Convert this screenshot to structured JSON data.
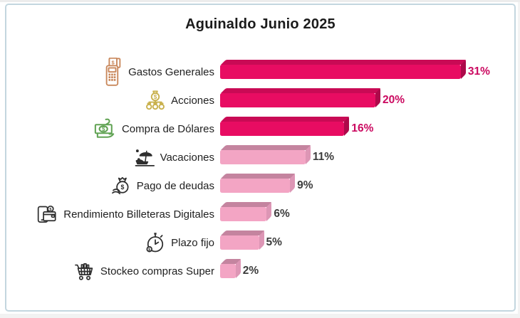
{
  "chart_data": {
    "type": "bar",
    "orientation": "horizontal",
    "title": "Aguinaldo Junio 2025",
    "categories": [
      "Gastos Generales",
      "Acciones",
      "Compra de Dólares",
      "Vacaciones",
      "Pago de deudas",
      "Rendimiento Billeteras Digitales",
      "Plazo fijo",
      "Stockeo compras Super"
    ],
    "values": [
      31,
      20,
      16,
      11,
      9,
      6,
      5,
      2
    ],
    "unit": "%",
    "xlim": [
      0,
      33
    ],
    "grid": false,
    "legend": "none",
    "highlight_note": "top 3 bars dark magenta, remaining 5 bars light pink"
  },
  "rows": [
    {
      "label": "Gastos Generales",
      "value": 31,
      "value_label": "31%",
      "icon": "pos-terminal-icon",
      "tone": "dark"
    },
    {
      "label": "Acciones",
      "value": 20,
      "value_label": "20%",
      "icon": "money-distribution-icon",
      "tone": "dark"
    },
    {
      "label": "Compra de Dólares",
      "value": 16,
      "value_label": "16%",
      "icon": "cash-in-hand-icon",
      "tone": "dark"
    },
    {
      "label": "Vacaciones",
      "value": 11,
      "value_label": "11%",
      "icon": "beach-umbrella-icon",
      "tone": "light"
    },
    {
      "label": "Pago de deudas",
      "value": 9,
      "value_label": "9%",
      "icon": "money-bag-hand-icon",
      "tone": "light"
    },
    {
      "label": "Rendimiento Billeteras Digitales",
      "value": 6,
      "value_label": "6%",
      "icon": "digital-wallet-phone-icon",
      "tone": "light"
    },
    {
      "label": "Plazo fijo",
      "value": 5,
      "value_label": "5%",
      "icon": "stopwatch-icon",
      "tone": "light"
    },
    {
      "label": "Stockeo compras Super",
      "value": 2,
      "value_label": "2%",
      "icon": "shopping-cart-icon",
      "tone": "light"
    }
  ],
  "colors": {
    "bar_dark_front": "#E80C62",
    "bar_dark_top": "#C90A55",
    "bar_dark_side": "#AD094A",
    "bar_light_front": "#F3A5C4",
    "bar_light_top": "#C4849F",
    "bar_light_side": "#DD96B5",
    "value_label_dark": "#CB0960",
    "value_label_light": "#3C3C3C",
    "frame_border": "#C3D6DF",
    "title_text": "#1B1B1B",
    "category_text": "#1F1F1F",
    "icon_orange": "#C9885C",
    "icon_gold": "#C9B14E",
    "icon_green": "#61A354",
    "icon_dark": "#2E2E2E"
  }
}
